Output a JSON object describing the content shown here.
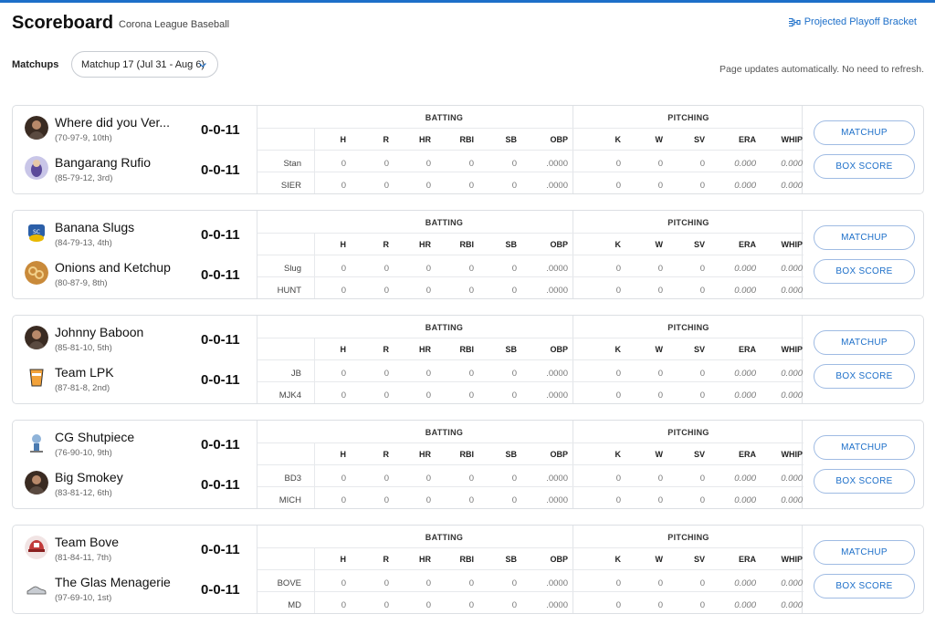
{
  "header": {
    "title": "Scoreboard",
    "league": "Corona League Baseball",
    "bracket_link": "Projected Playoff Bracket"
  },
  "filters": {
    "matchups_label": "Matchups",
    "selected_matchup": "Matchup 17 (Jul 31 - Aug 6)",
    "auto_note": "Page updates automatically. No need to refresh."
  },
  "columns": {
    "batting_title": "BATTING",
    "pitching_title": "PITCHING",
    "batting": [
      "H",
      "R",
      "HR",
      "RBI",
      "SB",
      "OBP"
    ],
    "pitching": [
      "K",
      "W",
      "SV",
      "ERA",
      "WHIP"
    ]
  },
  "buttons": {
    "matchup": "MATCHUP",
    "box_score": "BOX SCORE"
  },
  "matchups": [
    {
      "teams": [
        {
          "name": "Where did you Ver...",
          "record": "(70-97-9, 10th)",
          "score": "0-0-11",
          "abbr": "Stan",
          "avatar": "photo-avatar"
        },
        {
          "name": "Bangarang Rufio",
          "record": "(85-79-12, 3rd)",
          "score": "0-0-11",
          "abbr": "SIER",
          "avatar": "cartoon-avatar"
        }
      ]
    },
    {
      "teams": [
        {
          "name": "Banana Slugs",
          "record": "(84-79-13, 4th)",
          "score": "0-0-11",
          "abbr": "Slug",
          "avatar": "slug-logo"
        },
        {
          "name": "Onions and Ketchup",
          "record": "(80-87-9, 8th)",
          "score": "0-0-11",
          "abbr": "HUNT",
          "avatar": "onion-rings"
        }
      ]
    },
    {
      "teams": [
        {
          "name": "Johnny Baboon",
          "record": "(85-81-10, 5th)",
          "score": "0-0-11",
          "abbr": "JB",
          "avatar": "photo-avatar"
        },
        {
          "name": "Team LPK",
          "record": "(87-81-8, 2nd)",
          "score": "0-0-11",
          "abbr": "MJK4",
          "avatar": "glass-logo"
        }
      ]
    },
    {
      "teams": [
        {
          "name": "CG Shutpiece",
          "record": "(76-90-10, 9th)",
          "score": "0-0-11",
          "abbr": "BD3",
          "avatar": "trophy-logo"
        },
        {
          "name": "Big Smokey",
          "record": "(83-81-12, 6th)",
          "score": "0-0-11",
          "abbr": "MICH",
          "avatar": "photo-avatar"
        }
      ]
    },
    {
      "teams": [
        {
          "name": "Team Bove",
          "record": "(81-84-11, 7th)",
          "score": "0-0-11",
          "abbr": "BOVE",
          "avatar": "cap-logo"
        },
        {
          "name": "The Glas Menagerie",
          "record": "(97-69-10, 1st)",
          "score": "0-0-11",
          "abbr": "MD",
          "avatar": "shoe-logo"
        }
      ]
    }
  ],
  "row_values": {
    "batting": [
      "0",
      "0",
      "0",
      "0",
      "0",
      ".0000"
    ],
    "pitching": [
      "0",
      "0",
      "0",
      "0.000",
      "0.000"
    ]
  },
  "colors": {
    "accent": "#1d6fc9",
    "border": "#dcdfe3"
  }
}
